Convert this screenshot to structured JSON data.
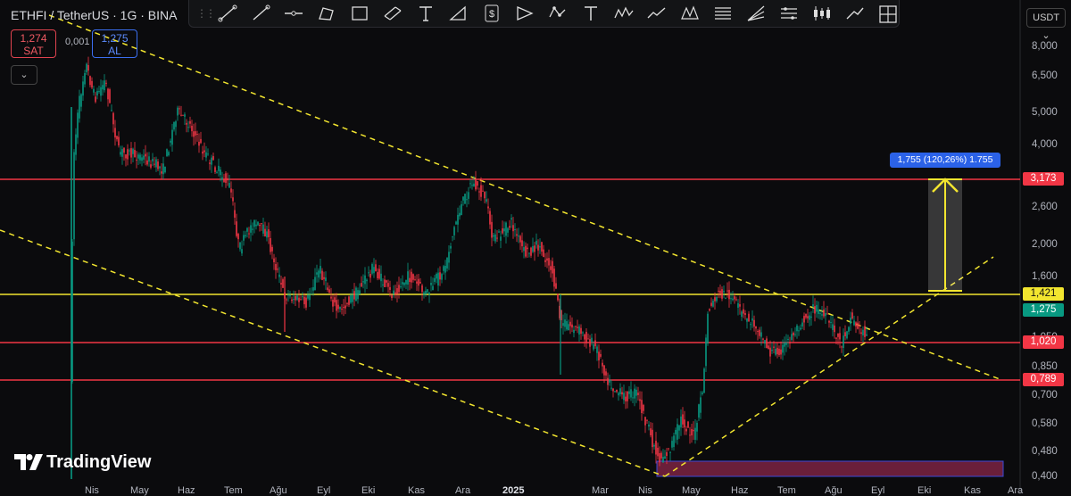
{
  "header": {
    "title": "ETHFI / TetherUS · 1G · BINA",
    "sell_price": "1,274",
    "sell_label": "SAT",
    "spread": "0,001",
    "buy_price": "1,275",
    "buy_label": "AL"
  },
  "toolbar": {
    "tools": [
      "trend-line-icon",
      "line-icon",
      "horizontal-ray-icon",
      "polyline-icon",
      "rectangle-icon",
      "parallel-channel-icon",
      "text-t-icon",
      "triangle-icon",
      "price-label-icon",
      "flag-icon",
      "pattern-icon",
      "text-icon",
      "elliott-wave-icon",
      "path-icon",
      "xabcd-pattern-icon",
      "fib-levels-icon",
      "fib-fan-icon",
      "position-icon",
      "candles-icon",
      "arrow-line-icon",
      "crosshair-frame-icon"
    ]
  },
  "currency_button": "USDT",
  "price_axis": {
    "labels": [
      "8,000",
      "6,500",
      "5,000",
      "4,000",
      "2,600",
      "2,000",
      "1,600",
      "1,050",
      "0,850",
      "0,700",
      "0,580",
      "0,480",
      "0,400"
    ],
    "badges": [
      {
        "text": "3,173",
        "bg": "#f23645",
        "color": "#ffffff"
      },
      {
        "text": "1,421",
        "bg": "#f2e52f",
        "color": "#111111"
      },
      {
        "text": "1,275",
        "bg": "#089981",
        "color": "#ffffff"
      },
      {
        "text": "1,020",
        "bg": "#f23645",
        "color": "#ffffff"
      },
      {
        "text": "0,789",
        "bg": "#f23645",
        "color": "#ffffff"
      }
    ]
  },
  "time_axis": [
    "Nis",
    "May",
    "Haz",
    "Tem",
    "Ağu",
    "Eyl",
    "Eki",
    "Kas",
    "Ara",
    "2025",
    "Mar",
    "Nis",
    "May",
    "Haz",
    "Tem",
    "Ağu",
    "Eyl",
    "Eki",
    "Kas",
    "Ara"
  ],
  "measure_label": "1,755 (120,26%) 1.755",
  "logo": "TradingView",
  "colors": {
    "up": "#089981",
    "down": "#f23645",
    "support": "#f23645",
    "resistance": "#f2e52f",
    "trend": "#f2e52f"
  }
}
